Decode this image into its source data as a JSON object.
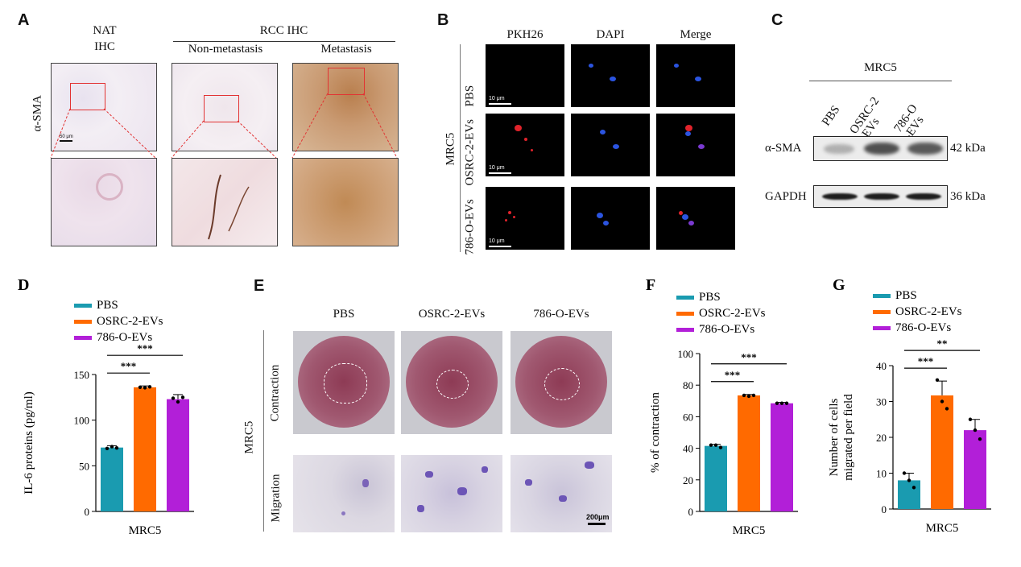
{
  "panels": {
    "A": {
      "letter": "A",
      "nat_line1": "NAT",
      "nat_line2": "IHC",
      "rcc_title": "RCC  IHC",
      "col_nonmet": "Non-metastasis",
      "col_met": "Metastasis",
      "row_label": "α-SMA",
      "scale": "50 μm"
    },
    "B": {
      "letter": "B",
      "cols": [
        "PKH26",
        "DAPI",
        "Merge"
      ],
      "rows": [
        "PBS",
        "OSRC-2-EVs",
        "786-O-EVs"
      ],
      "side_label": "MRC5",
      "scale": "10 μm"
    },
    "C": {
      "letter": "C",
      "header": "MRC5",
      "lanes": [
        "PBS",
        "OSRC-2\n-EVs",
        "786-O\n-EVs"
      ],
      "rows": [
        {
          "name": "α-SMA",
          "kda": "42 kDa"
        },
        {
          "name": "GAPDH",
          "kda": "36 kDa"
        }
      ]
    },
    "E": {
      "letter": "E",
      "cols": [
        "PBS",
        "OSRC-2-EVs",
        "786-O-EVs"
      ],
      "rows": [
        "Contraction",
        "Migration"
      ],
      "side_label": "MRC5",
      "scale": "200μm"
    }
  },
  "legend": {
    "items": [
      "PBS",
      "OSRC-2-EVs",
      "786-O-EVs"
    ],
    "colors": [
      "#1a9bb0",
      "#ff6a00",
      "#b21fd8"
    ]
  },
  "chart_data": [
    {
      "id": "D",
      "letter": "D",
      "type": "bar",
      "categories": [
        "PBS",
        "OSRC-2-EVs",
        "786-O-EVs"
      ],
      "values": [
        70,
        136,
        123
      ],
      "errors": [
        2,
        1.5,
        5
      ],
      "points": [
        [
          69,
          71,
          69.5
        ],
        [
          136,
          135.5,
          136.5
        ],
        [
          124,
          120,
          125
        ]
      ],
      "ylabel": "IL-6 proteins (pg/ml)",
      "xlabel": "MRC5",
      "ylim": [
        0,
        150
      ],
      "yticks": [
        0,
        50,
        100,
        150
      ],
      "significance": [
        {
          "from": 0,
          "to": 1,
          "label": "***"
        },
        {
          "from": 0,
          "to": 2,
          "label": "***"
        }
      ]
    },
    {
      "id": "F",
      "letter": "F",
      "type": "bar",
      "categories": [
        "PBS",
        "OSRC-2-EVs",
        "786-O-EVs"
      ],
      "values": [
        41.5,
        73.5,
        68.5
      ],
      "errors": [
        1,
        0.6,
        0.6
      ],
      "points": [
        [
          42,
          42,
          40.5
        ],
        [
          73.5,
          73,
          73.5
        ],
        [
          68.5,
          68.5,
          68.5
        ]
      ],
      "ylabel": "% of contraction",
      "xlabel": "MRC5",
      "ylim": [
        0,
        100
      ],
      "yticks": [
        0,
        20,
        40,
        60,
        80,
        100
      ],
      "significance": [
        {
          "from": 0,
          "to": 1,
          "label": "***"
        },
        {
          "from": 0,
          "to": 2,
          "label": "***"
        }
      ]
    },
    {
      "id": "G",
      "letter": "G",
      "type": "bar",
      "categories": [
        "PBS",
        "OSRC-2-EVs",
        "786-O-EVs"
      ],
      "values": [
        8,
        31.7,
        22
      ],
      "errors": [
        2,
        4,
        3
      ],
      "points": [
        [
          10,
          8,
          6
        ],
        [
          36,
          30,
          28
        ],
        [
          25,
          22,
          19.5
        ]
      ],
      "ylabel_line1": "Number of cells",
      "ylabel_line2": "migrated per field",
      "xlabel": "MRC5",
      "ylim": [
        0,
        40
      ],
      "yticks": [
        0,
        10,
        20,
        30,
        40
      ],
      "significance": [
        {
          "from": 0,
          "to": 1,
          "label": "***"
        },
        {
          "from": 0,
          "to": 2,
          "label": "**"
        }
      ]
    }
  ]
}
